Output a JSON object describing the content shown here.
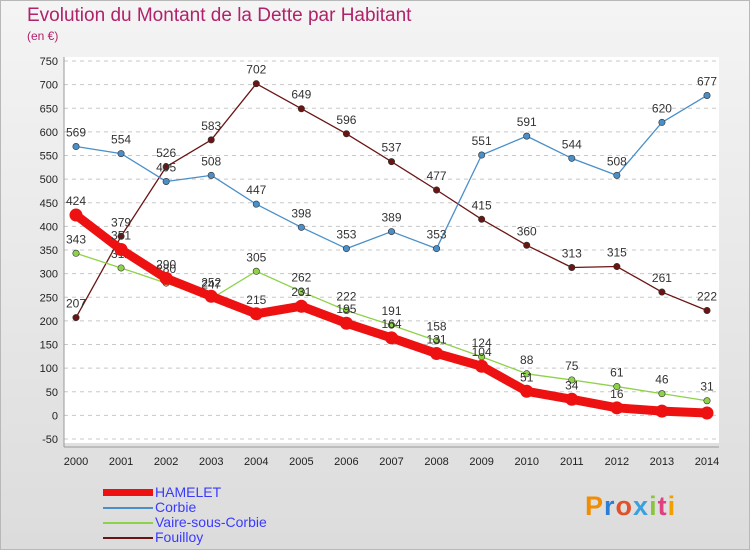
{
  "title": "Evolution du Montant de la Dette par Habitant",
  "subtitle": "(en €)",
  "logo": {
    "letters": [
      "P",
      "r",
      "o",
      "x",
      "i",
      "t",
      "i"
    ],
    "colors": [
      "#f28c00",
      "#2a7fd4",
      "#e0502a",
      "#3aa0e0",
      "#8bc53f",
      "#e04080",
      "#f2a000"
    ]
  },
  "chart_data": {
    "type": "line",
    "x": [
      "2000",
      "2001",
      "2002",
      "2003",
      "2004",
      "2005",
      "2006",
      "2007",
      "2008",
      "2009",
      "2010",
      "2011",
      "2012",
      "2013",
      "2014"
    ],
    "ylim": [
      -50,
      750
    ],
    "yticks": [
      -50,
      0,
      50,
      100,
      150,
      200,
      250,
      300,
      350,
      400,
      450,
      500,
      550,
      600,
      650,
      700,
      750
    ],
    "grid": "horizontal dashed",
    "legend_placement": "bottom-left",
    "series": [
      {
        "name": "Fouilloy",
        "color": "#6b1414",
        "values": [
          207,
          379,
          526,
          583,
          702,
          649,
          596,
          537,
          477,
          415,
          360,
          313,
          315,
          261,
          222
        ]
      },
      {
        "name": "Corbie",
        "color": "#4a8fc8",
        "values": [
          569,
          554,
          495,
          508,
          447,
          398,
          353,
          389,
          353,
          551,
          591,
          544,
          508,
          620,
          677
        ]
      },
      {
        "name": "Vaire-sous-Corbie",
        "color": "#8ed24a",
        "values": [
          343,
          312,
          280,
          247,
          305,
          262,
          222,
          191,
          158,
          124,
          88,
          75,
          61,
          46,
          31
        ]
      },
      {
        "name": "HAMELET",
        "color": "#ee1111",
        "values": [
          424,
          351,
          290,
          252,
          215,
          231,
          195,
          164,
          131,
          104,
          51,
          34,
          16,
          9,
          5
        ]
      }
    ],
    "labels": [
      [
        207,
        379,
        526,
        583,
        702,
        649,
        596,
        537,
        477,
        415,
        360,
        313,
        315,
        261,
        222
      ],
      [
        569,
        554,
        495,
        508,
        447,
        398,
        353,
        389,
        353,
        551,
        591,
        544,
        508,
        620,
        677
      ],
      [
        343,
        312,
        280,
        247,
        305,
        262,
        222,
        191,
        158,
        124,
        88,
        75,
        61,
        46,
        31
      ],
      [
        424,
        351,
        290,
        252,
        215,
        231,
        195,
        164,
        131,
        104,
        51,
        34,
        16,
        "",
        ""
      ]
    ]
  },
  "legend": [
    {
      "label": "HAMELET",
      "color": "#ee1111",
      "thick": true
    },
    {
      "label": "Corbie",
      "color": "#4a8fc8",
      "thick": false
    },
    {
      "label": "Vaire-sous-Corbie",
      "color": "#8ed24a",
      "thick": false
    },
    {
      "label": "Fouilloy",
      "color": "#6b1414",
      "thick": false
    }
  ]
}
